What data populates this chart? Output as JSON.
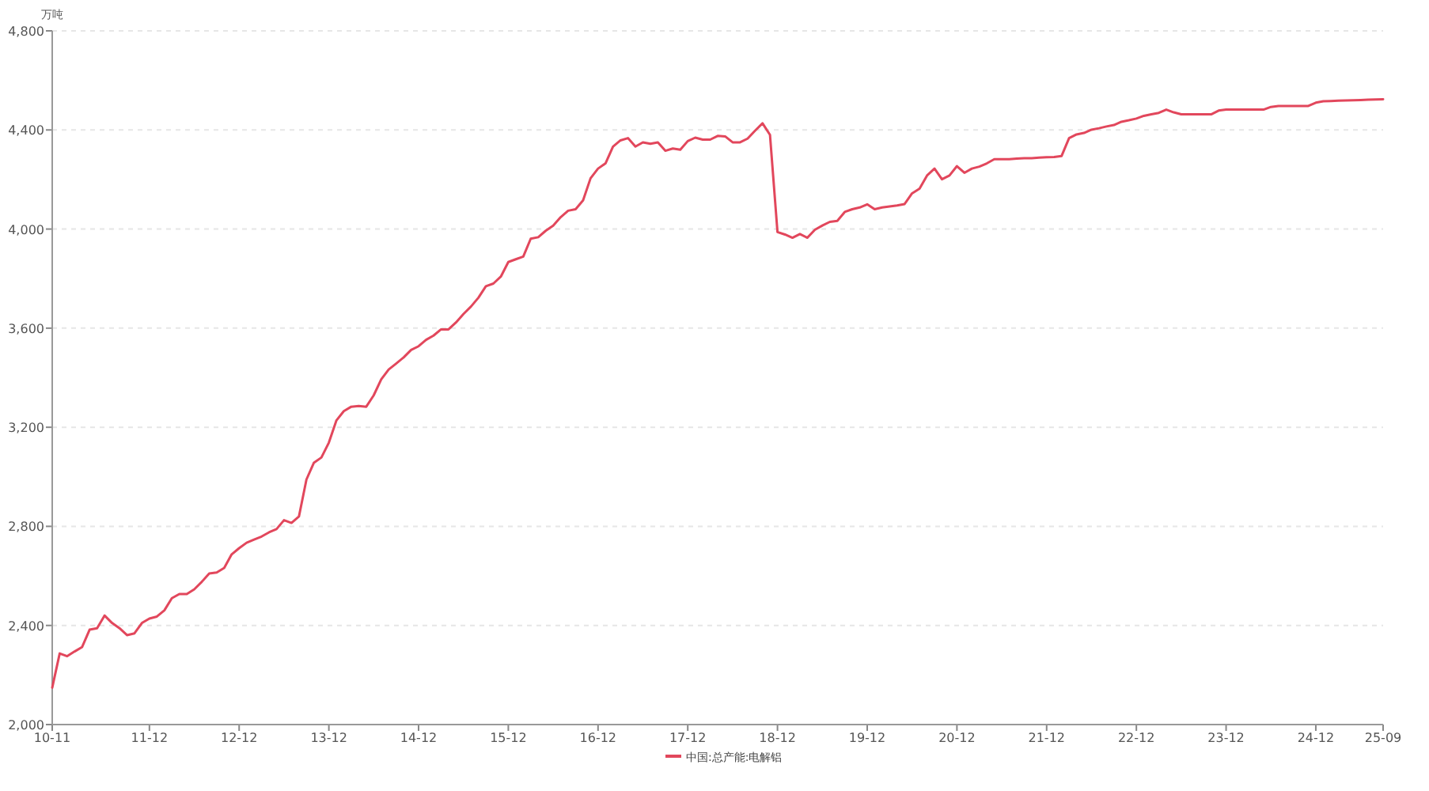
{
  "chart_data": {
    "type": "line",
    "ylabel": "万吨",
    "grid": "y",
    "legend": "bottom",
    "xlim": [
      "2010-11",
      "2025-09"
    ],
    "ylim": [
      2000,
      4800
    ],
    "xticks": [
      {
        "value": "2010-11",
        "label": "10-11"
      },
      {
        "value": "2011-12",
        "label": "11-12"
      },
      {
        "value": "2012-12",
        "label": "12-12"
      },
      {
        "value": "2013-12",
        "label": "13-12"
      },
      {
        "value": "2014-12",
        "label": "14-12"
      },
      {
        "value": "2015-12",
        "label": "15-12"
      },
      {
        "value": "2016-12",
        "label": "16-12"
      },
      {
        "value": "2017-12",
        "label": "17-12"
      },
      {
        "value": "2018-12",
        "label": "18-12"
      },
      {
        "value": "2019-12",
        "label": "19-12"
      },
      {
        "value": "2020-12",
        "label": "20-12"
      },
      {
        "value": "2021-12",
        "label": "21-12"
      },
      {
        "value": "2022-12",
        "label": "22-12"
      },
      {
        "value": "2023-12",
        "label": "23-12"
      },
      {
        "value": "2024-12",
        "label": "24-12"
      },
      {
        "value": "2025-09",
        "label": "25-09"
      }
    ],
    "yticks": [
      {
        "value": 2000,
        "label": "2,000"
      },
      {
        "value": 2400,
        "label": "2,400"
      },
      {
        "value": 2800,
        "label": "2,800"
      },
      {
        "value": 3200,
        "label": "3,200"
      },
      {
        "value": 3600,
        "label": "3,600"
      },
      {
        "value": 4000,
        "label": "4,000"
      },
      {
        "value": 4400,
        "label": "4,400"
      },
      {
        "value": 4800,
        "label": "4,800"
      }
    ],
    "x": [
      "2010-11",
      "2010-12",
      "2011-01",
      "2011-02",
      "2011-03",
      "2011-04",
      "2011-05",
      "2011-06",
      "2011-07",
      "2011-08",
      "2011-09",
      "2011-10",
      "2011-11",
      "2011-12",
      "2012-01",
      "2012-02",
      "2012-03",
      "2012-04",
      "2012-05",
      "2012-06",
      "2012-07",
      "2012-08",
      "2012-09",
      "2012-10",
      "2012-11",
      "2012-12",
      "2013-01",
      "2013-02",
      "2013-03",
      "2013-04",
      "2013-05",
      "2013-06",
      "2013-07",
      "2013-08",
      "2013-09",
      "2013-10",
      "2013-11",
      "2013-12",
      "2014-01",
      "2014-02",
      "2014-03",
      "2014-04",
      "2014-05",
      "2014-06",
      "2014-07",
      "2014-08",
      "2014-09",
      "2014-10",
      "2014-11",
      "2014-12",
      "2015-01",
      "2015-02",
      "2015-03",
      "2015-04",
      "2015-05",
      "2015-06",
      "2015-07",
      "2015-08",
      "2015-09",
      "2015-10",
      "2015-11",
      "2015-12",
      "2016-01",
      "2016-02",
      "2016-03",
      "2016-04",
      "2016-05",
      "2016-06",
      "2016-07",
      "2016-08",
      "2016-09",
      "2016-10",
      "2016-11",
      "2016-12",
      "2017-01",
      "2017-02",
      "2017-03",
      "2017-04",
      "2017-05",
      "2017-06",
      "2017-07",
      "2017-08",
      "2017-09",
      "2017-10",
      "2017-11",
      "2017-12",
      "2018-01",
      "2018-02",
      "2018-03",
      "2018-04",
      "2018-05",
      "2018-06",
      "2018-07",
      "2018-08",
      "2018-09",
      "2018-10",
      "2018-11",
      "2018-12",
      "2019-01",
      "2019-02",
      "2019-03",
      "2019-04",
      "2019-05",
      "2019-06",
      "2019-07",
      "2019-08",
      "2019-09",
      "2019-10",
      "2019-11",
      "2019-12",
      "2020-01",
      "2020-02",
      "2020-03",
      "2020-04",
      "2020-05",
      "2020-06",
      "2020-07",
      "2020-08",
      "2020-09",
      "2020-10",
      "2020-11",
      "2020-12",
      "2021-01",
      "2021-02",
      "2021-03",
      "2021-04",
      "2021-05",
      "2021-06",
      "2021-07",
      "2021-08",
      "2021-09",
      "2021-10",
      "2021-11",
      "2021-12",
      "2022-01",
      "2022-02",
      "2022-03",
      "2022-04",
      "2022-05",
      "2022-06",
      "2022-07",
      "2022-08",
      "2022-09",
      "2022-10",
      "2022-11",
      "2022-12",
      "2023-01",
      "2023-02",
      "2023-03",
      "2023-04",
      "2023-05",
      "2023-06",
      "2023-07",
      "2023-08",
      "2023-09",
      "2023-10",
      "2023-11",
      "2023-12",
      "2024-01",
      "2024-02",
      "2024-03",
      "2024-04",
      "2024-05",
      "2024-06",
      "2024-07",
      "2024-08",
      "2024-09",
      "2024-10",
      "2024-11",
      "2024-12",
      "2025-01",
      "2025-02",
      "2025-03",
      "2025-04",
      "2025-05",
      "2025-06",
      "2025-07",
      "2025-08",
      "2025-09"
    ],
    "series": [
      {
        "name": "中国:总产能:电解铝",
        "color": "#e2475c",
        "values": [
          2149,
          2287,
          2276,
          2295,
          2313,
          2383,
          2389,
          2440,
          2410,
          2389,
          2361,
          2368,
          2410,
          2428,
          2436,
          2461,
          2510,
          2527,
          2527,
          2546,
          2576,
          2610,
          2614,
          2632,
          2687,
          2712,
          2734,
          2747,
          2759,
          2776,
          2789,
          2825,
          2814,
          2840,
          2989,
          3057,
          3078,
          3138,
          3227,
          3265,
          3283,
          3286,
          3283,
          3329,
          3393,
          3433,
          3457,
          3482,
          3512,
          3527,
          3553,
          3570,
          3595,
          3595,
          3623,
          3657,
          3687,
          3723,
          3769,
          3780,
          3808,
          3867,
          3878,
          3889,
          3961,
          3967,
          3993,
          4014,
          4048,
          4074,
          4080,
          4116,
          4205,
          4244,
          4265,
          4333,
          4358,
          4367,
          4333,
          4350,
          4344,
          4350,
          4316,
          4325,
          4320,
          4355,
          4369,
          4361,
          4361,
          4376,
          4374,
          4350,
          4350,
          4365,
          4397,
          4427,
          4380,
          3988,
          3978,
          3965,
          3980,
          3965,
          3997,
          4014,
          4029,
          4033,
          4069,
          4080,
          4087,
          4100,
          4080,
          4087,
          4091,
          4095,
          4101,
          4144,
          4163,
          4216,
          4244,
          4201,
          4216,
          4254,
          4227,
          4244,
          4252,
          4265,
          4282,
          4282,
          4282,
          4284,
          4286,
          4286,
          4288,
          4290,
          4291,
          4295,
          4367,
          4382,
          4388,
          4401,
          4407,
          4414,
          4420,
          4433,
          4439,
          4446,
          4457,
          4463,
          4469,
          4482,
          4471,
          4463,
          4463,
          4463,
          4463,
          4463,
          4478,
          4482,
          4482,
          4482,
          4482,
          4482,
          4482,
          4493,
          4497,
          4497,
          4497,
          4497,
          4497,
          4510,
          4516,
          4517,
          4518,
          4519,
          4520,
          4521,
          4522,
          4523,
          4524
        ]
      }
    ]
  }
}
